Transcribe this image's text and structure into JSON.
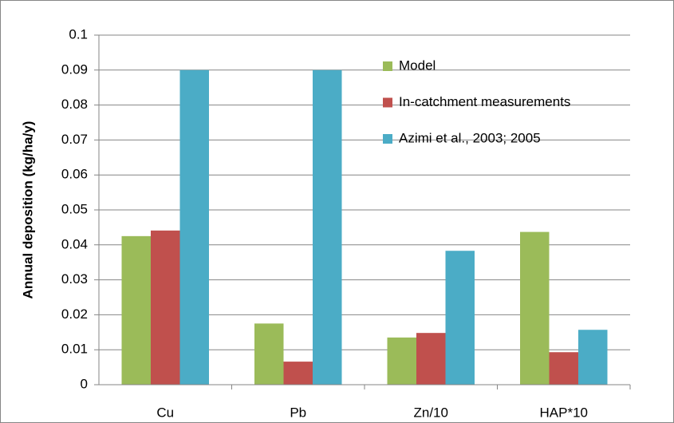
{
  "chart_data": {
    "type": "bar",
    "y_axis_label": "Annual deposition (kg/ha/y)",
    "categories": [
      "Cu",
      "Pb",
      "Zn/10",
      "HAP*10"
    ],
    "series": [
      {
        "name": "Model",
        "color": "#9bbb59",
        "values": [
          0.0425,
          0.0175,
          0.0135,
          0.0437
        ]
      },
      {
        "name": "In-catchment measurements",
        "color": "#c0504d",
        "values": [
          0.0441,
          0.0066,
          0.0148,
          0.0093
        ]
      },
      {
        "name": "Azimi et al., 2003; 2005",
        "color": "#4bacc6",
        "values": [
          0.09,
          0.09,
          0.0383,
          0.0157
        ]
      }
    ],
    "ylim": [
      0,
      0.1
    ],
    "yticks": [
      0,
      0.01,
      0.02,
      0.03,
      0.04,
      0.05,
      0.06,
      0.07,
      0.08,
      0.09,
      0.1
    ],
    "grid": true,
    "legend": "top-right"
  }
}
